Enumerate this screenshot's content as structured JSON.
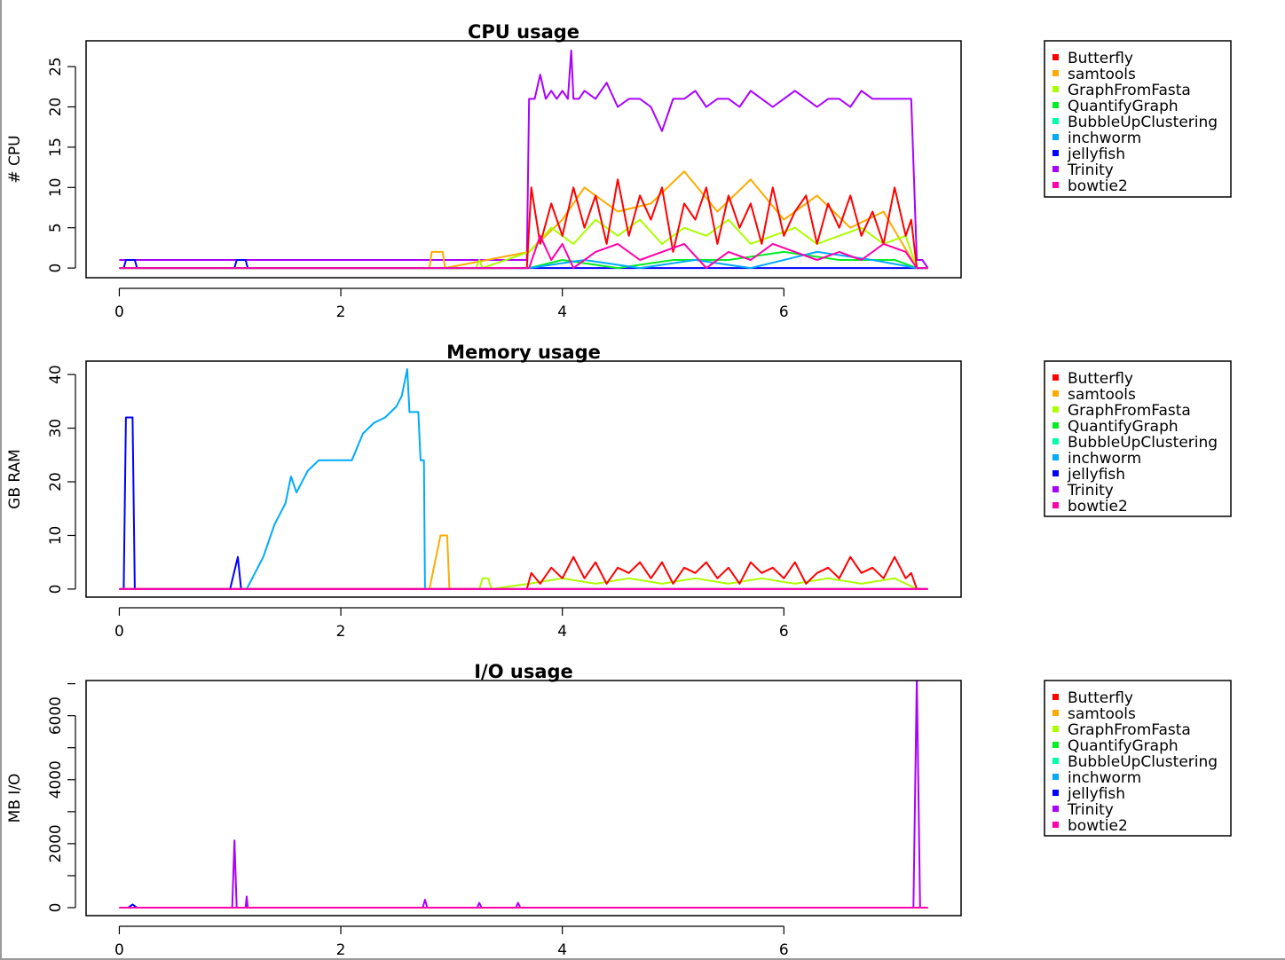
{
  "colors": {
    "Butterfly": "#ff0000",
    "samtools": "#ffaa00",
    "GraphFromFasta": "#aaff00",
    "QuantifyGraph": "#00ee22",
    "BubbleUpClustering": "#00ffaa",
    "inchworm": "#00aaff",
    "jellyfish": "#0000ff",
    "Trinity": "#aa00ff",
    "bowtie2": "#ff00aa"
  },
  "chart_data": [
    {
      "type": "line",
      "title": "CPU usage",
      "xlabel": "",
      "ylabel": "# CPU",
      "xlim": [
        -0.3,
        7.6
      ],
      "ylim": [
        -1.2,
        28.2
      ],
      "xticks": [
        "0",
        "2",
        "4",
        "6"
      ],
      "yticks": [
        "0",
        "5",
        "10",
        "15",
        "20",
        "25"
      ],
      "legend": {
        "position": "right",
        "entries": [
          "Butterfly",
          "samtools",
          "GraphFromFasta",
          "QuantifyGraph",
          "BubbleUpClustering",
          "inchworm",
          "jellyfish",
          "Trinity",
          "bowtie2"
        ]
      },
      "series": [
        {
          "name": "Trinity",
          "x": [
            0,
            3.68,
            3.7,
            3.75,
            3.8,
            3.85,
            3.9,
            3.95,
            4.0,
            4.05,
            4.08,
            4.1,
            4.15,
            4.2,
            4.3,
            4.4,
            4.5,
            4.6,
            4.7,
            4.8,
            4.9,
            5.0,
            5.1,
            5.2,
            5.3,
            5.4,
            5.5,
            5.6,
            5.7,
            5.8,
            5.9,
            6.0,
            6.1,
            6.2,
            6.3,
            6.4,
            6.5,
            6.6,
            6.7,
            6.8,
            6.9,
            7.0,
            7.1,
            7.15,
            7.2,
            7.25,
            7.3
          ],
          "y": [
            1,
            1,
            21,
            21,
            24,
            21,
            22,
            21,
            22,
            21,
            27,
            21,
            21,
            22,
            21,
            23,
            20,
            21,
            21,
            20,
            17,
            21,
            21,
            22,
            20,
            21,
            21,
            20,
            22,
            21,
            20,
            21,
            22,
            21,
            20,
            21,
            21,
            20,
            22,
            21,
            21,
            21,
            21,
            21,
            1,
            1,
            0
          ]
        },
        {
          "name": "jellyfish",
          "x": [
            0,
            0.04,
            0.06,
            0.14,
            0.16,
            1.04,
            1.06,
            1.14,
            1.16,
            3.0,
            3.6,
            3.7,
            7.3
          ],
          "y": [
            0,
            0,
            1,
            1,
            0,
            0,
            1,
            1,
            0,
            0,
            0,
            0,
            0
          ]
        },
        {
          "name": "samtools",
          "x": [
            0,
            2.8,
            2.82,
            2.92,
            2.94,
            3.7,
            4.0,
            4.2,
            4.5,
            4.8,
            5.1,
            5.4,
            5.7,
            6.0,
            6.3,
            6.6,
            6.9,
            7.2
          ],
          "y": [
            0,
            0,
            2,
            2,
            0,
            2,
            6,
            10,
            7,
            8,
            12,
            7,
            11,
            6,
            9,
            5,
            7,
            0
          ]
        },
        {
          "name": "GraphFromFasta",
          "x": [
            0,
            3.22,
            3.25,
            3.28,
            3.7,
            3.9,
            4.1,
            4.3,
            4.5,
            4.7,
            4.9,
            5.1,
            5.3,
            5.5,
            5.7,
            5.9,
            6.1,
            6.3,
            6.5,
            6.7,
            6.9,
            7.1,
            7.2
          ],
          "y": [
            0,
            0,
            1,
            0,
            2,
            5,
            3,
            6,
            4,
            6,
            3,
            5,
            4,
            6,
            3,
            4,
            5,
            3,
            4,
            5,
            3,
            4,
            0
          ]
        },
        {
          "name": "Butterfly",
          "x": [
            0,
            3.68,
            3.72,
            3.8,
            3.9,
            4.0,
            4.1,
            4.2,
            4.3,
            4.4,
            4.5,
            4.6,
            4.7,
            4.8,
            4.9,
            5.0,
            5.1,
            5.2,
            5.3,
            5.4,
            5.5,
            5.6,
            5.7,
            5.8,
            5.9,
            6.0,
            6.1,
            6.2,
            6.3,
            6.4,
            6.5,
            6.6,
            6.7,
            6.8,
            6.9,
            7.0,
            7.1,
            7.15,
            7.2,
            7.3
          ],
          "y": [
            0,
            0,
            10,
            3,
            8,
            4,
            10,
            5,
            9,
            3,
            11,
            4,
            9,
            6,
            10,
            2,
            8,
            6,
            10,
            3,
            9,
            5,
            8,
            3,
            10,
            4,
            7,
            9,
            3,
            8,
            5,
            9,
            4,
            7,
            3,
            10,
            4,
            6,
            0,
            0
          ]
        },
        {
          "name": "QuantifyGraph",
          "x": [
            0,
            3.7,
            4.0,
            4.5,
            5.0,
            5.5,
            6.0,
            6.5,
            7.0,
            7.2,
            7.3
          ],
          "y": [
            0,
            0,
            1,
            0,
            1,
            1,
            2,
            1,
            1,
            0,
            0
          ]
        },
        {
          "name": "inchworm",
          "x": [
            0,
            3.7,
            4.2,
            4.7,
            5.2,
            5.7,
            6.3,
            6.8,
            7.2,
            7.3
          ],
          "y": [
            0,
            0,
            1,
            0,
            1,
            0,
            2,
            1,
            0,
            0
          ]
        },
        {
          "name": "bowtie2",
          "x": [
            0,
            3.7,
            3.8,
            3.9,
            4.0,
            4.1,
            4.3,
            4.5,
            4.7,
            4.9,
            5.1,
            5.3,
            5.5,
            5.7,
            5.9,
            6.1,
            6.3,
            6.5,
            6.7,
            6.9,
            7.1,
            7.2,
            7.3
          ],
          "y": [
            0,
            0,
            4,
            1,
            3,
            0,
            2,
            3,
            1,
            2,
            3,
            0,
            2,
            1,
            3,
            2,
            1,
            2,
            1,
            3,
            2,
            0,
            0
          ]
        }
      ]
    },
    {
      "type": "line",
      "title": "Memory usage",
      "xlabel": "",
      "ylabel": "GB RAM",
      "xlim": [
        -0.3,
        7.6
      ],
      "ylim": [
        -1.5,
        42.5
      ],
      "xticks": [
        "0",
        "2",
        "4",
        "6"
      ],
      "yticks": [
        "0",
        "10",
        "20",
        "30",
        "40"
      ],
      "legend": {
        "position": "right",
        "entries": [
          "Butterfly",
          "samtools",
          "GraphFromFasta",
          "QuantifyGraph",
          "BubbleUpClustering",
          "inchworm",
          "jellyfish",
          "Trinity",
          "bowtie2"
        ]
      },
      "series": [
        {
          "name": "jellyfish",
          "x": [
            0,
            0.04,
            0.06,
            0.12,
            0.14,
            1.0,
            1.07,
            1.1,
            1.14,
            7.3
          ],
          "y": [
            0,
            0,
            32,
            32,
            0,
            0,
            6,
            0,
            0,
            0
          ]
        },
        {
          "name": "inchworm",
          "x": [
            0,
            1.15,
            1.2,
            1.3,
            1.4,
            1.5,
            1.55,
            1.6,
            1.7,
            1.8,
            2.0,
            2.1,
            2.2,
            2.3,
            2.4,
            2.5,
            2.55,
            2.6,
            2.62,
            2.7,
            2.72,
            2.75,
            2.76,
            7.3
          ],
          "y": [
            0,
            0,
            2,
            6,
            12,
            16,
            21,
            18,
            22,
            24,
            24,
            24,
            29,
            31,
            32,
            34,
            36,
            41,
            33,
            33,
            24,
            24,
            0,
            0
          ]
        },
        {
          "name": "samtools",
          "x": [
            0,
            2.8,
            2.88,
            2.9,
            2.96,
            2.98,
            7.3
          ],
          "y": [
            0,
            0,
            8,
            10,
            10,
            0,
            0
          ]
        },
        {
          "name": "GraphFromFasta",
          "x": [
            0,
            3.25,
            3.28,
            3.33,
            3.36,
            3.7,
            4.0,
            4.3,
            4.6,
            4.9,
            5.2,
            5.5,
            5.8,
            6.1,
            6.4,
            6.7,
            7.0,
            7.2,
            7.3
          ],
          "y": [
            0,
            0,
            2,
            2,
            0,
            1,
            2,
            1,
            2,
            1,
            2,
            1,
            2,
            1,
            2,
            1,
            2,
            0,
            0
          ]
        },
        {
          "name": "Butterfly",
          "x": [
            0,
            3.68,
            3.72,
            3.8,
            3.9,
            4.0,
            4.1,
            4.2,
            4.3,
            4.4,
            4.5,
            4.6,
            4.7,
            4.8,
            4.9,
            5.0,
            5.1,
            5.2,
            5.3,
            5.4,
            5.5,
            5.6,
            5.7,
            5.8,
            5.9,
            6.0,
            6.1,
            6.2,
            6.3,
            6.4,
            6.5,
            6.6,
            6.7,
            6.8,
            6.9,
            7.0,
            7.1,
            7.15,
            7.2,
            7.3
          ],
          "y": [
            0,
            0,
            3,
            1,
            4,
            2,
            6,
            2,
            5,
            1,
            4,
            3,
            5,
            2,
            5,
            1,
            4,
            3,
            5,
            2,
            4,
            1,
            5,
            3,
            4,
            2,
            5,
            1,
            3,
            4,
            2,
            6,
            3,
            4,
            2,
            6,
            2,
            3,
            0,
            0
          ]
        },
        {
          "name": "Trinity",
          "x": [
            0,
            7.3
          ],
          "y": [
            0,
            0
          ]
        },
        {
          "name": "bowtie2",
          "x": [
            0,
            7.3
          ],
          "y": [
            0,
            0
          ]
        }
      ]
    },
    {
      "type": "line",
      "title": "I/O usage",
      "xlabel": "",
      "ylabel": "MB I/O",
      "xlim": [
        -0.3,
        7.6
      ],
      "ylim": [
        -250,
        7100
      ],
      "xticks": [
        "0",
        "2",
        "4",
        "6"
      ],
      "yticks": [
        "0",
        "2000",
        "4000",
        "6000"
      ],
      "legend": {
        "position": "right",
        "entries": [
          "Butterfly",
          "samtools",
          "GraphFromFasta",
          "QuantifyGraph",
          "BubbleUpClustering",
          "inchworm",
          "jellyfish",
          "Trinity",
          "bowtie2"
        ]
      },
      "series": [
        {
          "name": "jellyfish",
          "x": [
            0,
            0.08,
            0.12,
            0.16,
            7.3
          ],
          "y": [
            0,
            0,
            100,
            0,
            0
          ]
        },
        {
          "name": "Trinity",
          "x": [
            0,
            1.02,
            1.04,
            1.06,
            1.14,
            1.15,
            1.16,
            2.74,
            2.76,
            2.78,
            3.23,
            3.25,
            3.27,
            3.58,
            3.6,
            3.62,
            7.17,
            7.2,
            7.23,
            7.3
          ],
          "y": [
            0,
            0,
            2100,
            0,
            0,
            350,
            0,
            0,
            250,
            0,
            0,
            150,
            0,
            0,
            150,
            0,
            0,
            7200,
            0,
            0
          ]
        },
        {
          "name": "samtools",
          "x": [
            0,
            7.3
          ],
          "y": [
            0,
            0
          ]
        },
        {
          "name": "bowtie2",
          "x": [
            0,
            7.3
          ],
          "y": [
            0,
            0
          ]
        }
      ]
    }
  ]
}
